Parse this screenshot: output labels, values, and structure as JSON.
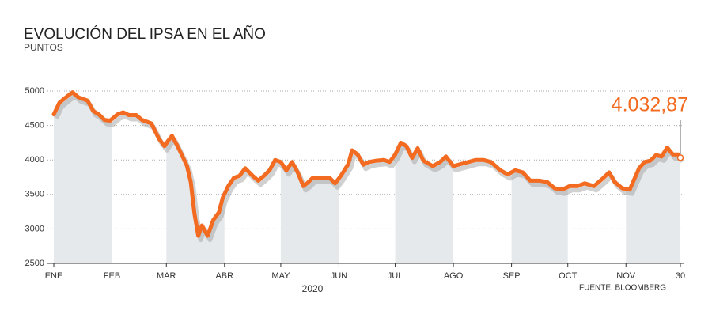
{
  "chart_data": {
    "type": "line",
    "title": "EVOLUCIÓN DEL IPSA EN EL AÑO",
    "subtitle": "PUNTOS",
    "x_label": "2020",
    "source": "FUENTE: BLOOMBERG",
    "xlim": [
      1,
      335
    ],
    "xticks": [
      {
        "value": 1,
        "label": "ENE"
      },
      {
        "value": 32,
        "label": "FEB"
      },
      {
        "value": 61,
        "label": "MAR"
      },
      {
        "value": 92,
        "label": "ABR"
      },
      {
        "value": 122,
        "label": "MAY"
      },
      {
        "value": 153,
        "label": "JUN"
      },
      {
        "value": 183,
        "label": "JUL"
      },
      {
        "value": 214,
        "label": "AGO"
      },
      {
        "value": 245,
        "label": "SEP"
      },
      {
        "value": 275,
        "label": "OCT"
      },
      {
        "value": 306,
        "label": "NOV"
      },
      {
        "value": 335,
        "label": "30"
      }
    ],
    "ylim": [
      2500,
      5000
    ],
    "yticks": [
      2500,
      3000,
      3500,
      4000,
      4500,
      5000
    ],
    "grid": true,
    "series": [
      {
        "name": "IPSA",
        "color": "#f26b21",
        "x": [
          1,
          4,
          8,
          11,
          14,
          19,
          22,
          25,
          28,
          31,
          35,
          38,
          41,
          45,
          48,
          53,
          57,
          60,
          62,
          64,
          67,
          70,
          72,
          74,
          76,
          78,
          80,
          83,
          86,
          89,
          91,
          94,
          97,
          100,
          103,
          107,
          110,
          113,
          116,
          119,
          122,
          125,
          128,
          131,
          134,
          136,
          139,
          143,
          148,
          151,
          154,
          158,
          160,
          163,
          166,
          169,
          173,
          177,
          180,
          183,
          186,
          189,
          192,
          195,
          198,
          203,
          207,
          210,
          214,
          218,
          222,
          226,
          230,
          234,
          239,
          243,
          247,
          251,
          255,
          260,
          264,
          268,
          272,
          276,
          280,
          284,
          289,
          294,
          297,
          300,
          304,
          308,
          313,
          316,
          319,
          322,
          325,
          328,
          331,
          334,
          335
        ],
        "values": [
          4660,
          4830,
          4920,
          4980,
          4910,
          4860,
          4710,
          4660,
          4580,
          4570,
          4660,
          4690,
          4650,
          4650,
          4580,
          4530,
          4310,
          4200,
          4280,
          4350,
          4200,
          4030,
          3910,
          3680,
          3220,
          2900,
          3050,
          2900,
          3130,
          3240,
          3450,
          3620,
          3740,
          3770,
          3880,
          3770,
          3700,
          3770,
          3850,
          4000,
          3970,
          3850,
          3970,
          3820,
          3620,
          3660,
          3740,
          3740,
          3740,
          3660,
          3770,
          3940,
          4140,
          4080,
          3930,
          3970,
          3990,
          4000,
          3970,
          4080,
          4250,
          4200,
          4030,
          4170,
          3990,
          3910,
          3970,
          4050,
          3910,
          3940,
          3970,
          4000,
          4000,
          3970,
          3850,
          3790,
          3850,
          3820,
          3700,
          3700,
          3680,
          3590,
          3570,
          3620,
          3620,
          3660,
          3620,
          3740,
          3820,
          3680,
          3590,
          3570,
          3880,
          3970,
          3990,
          4070,
          4050,
          4180,
          4080,
          4080,
          4032.87
        ]
      }
    ],
    "annotation": {
      "value": 4032.87,
      "value_label": "4.032,87"
    }
  }
}
